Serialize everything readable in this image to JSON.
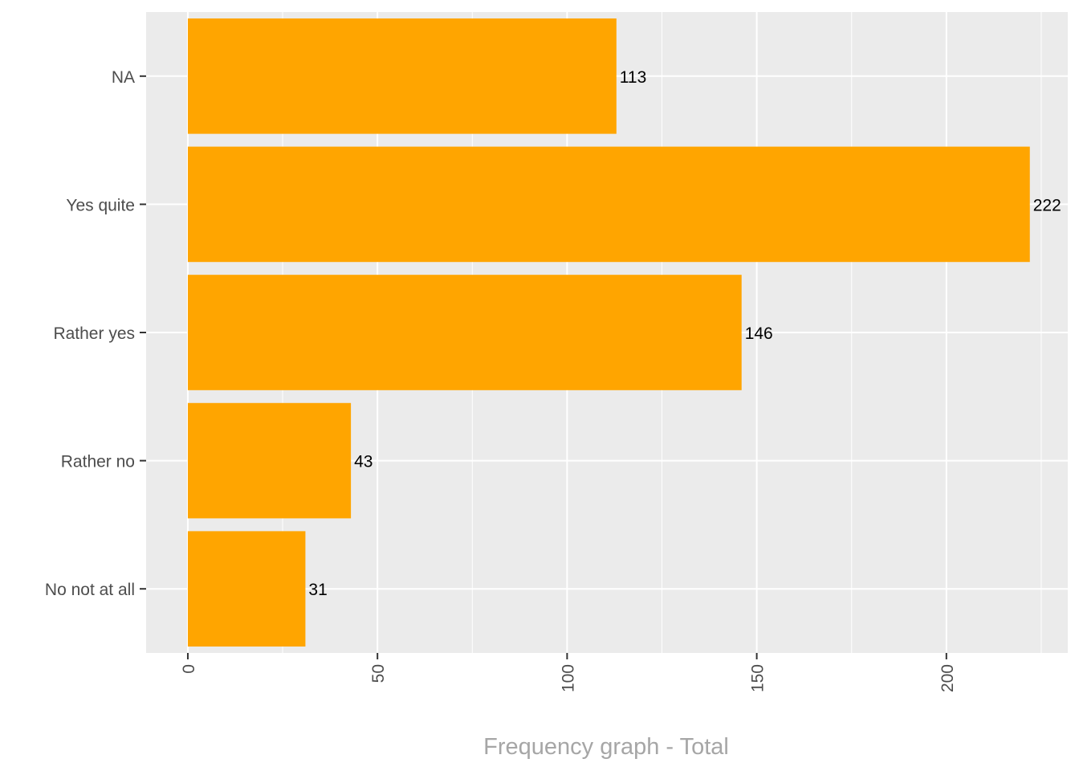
{
  "chart_data": {
    "type": "bar",
    "orientation": "horizontal",
    "categories": [
      "NA",
      "Yes quite",
      "Rather yes",
      "Rather no",
      "No not at all"
    ],
    "values": [
      113,
      222,
      146,
      43,
      31
    ],
    "xlabel": "Frequency graph - Total",
    "ylabel": "",
    "xlim": [
      -11,
      232
    ],
    "x_ticks": [
      0,
      50,
      100,
      150,
      200
    ],
    "x_tick_labels": [
      "0",
      "50",
      "100",
      "150",
      "200"
    ],
    "grid": true,
    "tick_label_rotation": "vertical",
    "colors": {
      "bar": "#FFA500",
      "panel": "#EBEBEB",
      "grid": "#FFFFFF",
      "axis_text": "#4D4D4D",
      "data_label": "#000000",
      "x_title": "#A6A6A6"
    }
  }
}
